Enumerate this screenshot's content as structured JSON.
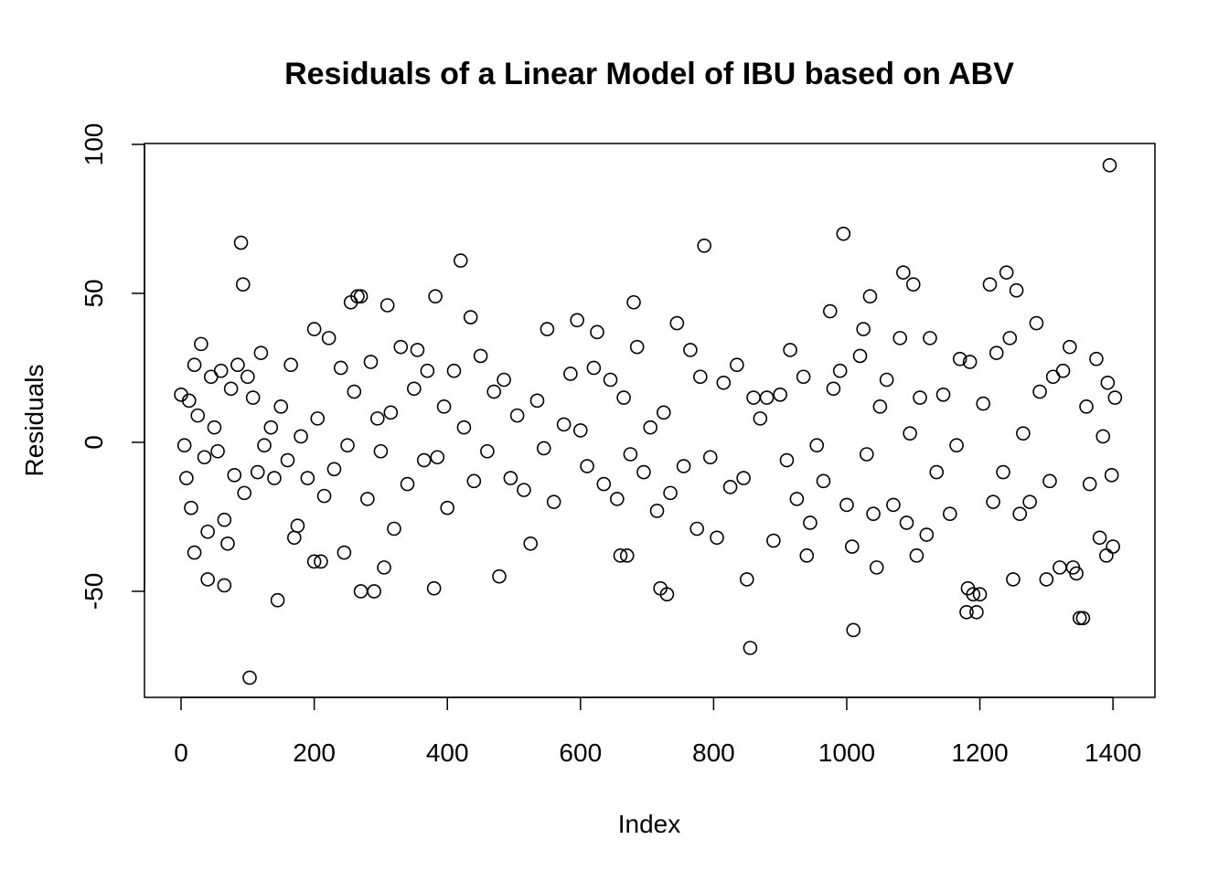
{
  "chart_data": {
    "type": "scatter",
    "title": "Residuals of a Linear Model of IBU based on ABV",
    "x_label": "Index",
    "y_label": "Residuals",
    "color": "#000000",
    "x": [
      0,
      5,
      8,
      12,
      15,
      20,
      20,
      25,
      30,
      35,
      40,
      40,
      45,
      50,
      55,
      60,
      65,
      65,
      70,
      75,
      80,
      85,
      90,
      93,
      95,
      100,
      103,
      108,
      115,
      120,
      125,
      135,
      140,
      145,
      150,
      160,
      165,
      170,
      175,
      180,
      190,
      200,
      200,
      205,
      210,
      215,
      222,
      230,
      240,
      245,
      250,
      255,
      260,
      265,
      270,
      270,
      280,
      285,
      290,
      295,
      300,
      305,
      310,
      315,
      320,
      330,
      340,
      350,
      355,
      365,
      370,
      380,
      382,
      385,
      395,
      400,
      410,
      420,
      425,
      435,
      440,
      450,
      460,
      470,
      478,
      485,
      495,
      505,
      515,
      525,
      535,
      545,
      550,
      560,
      575,
      585,
      595,
      600,
      610,
      620,
      625,
      635,
      645,
      655,
      660,
      665,
      670,
      675,
      680,
      685,
      695,
      705,
      715,
      720,
      725,
      730,
      735,
      745,
      755,
      765,
      775,
      780,
      786,
      795,
      805,
      815,
      825,
      835,
      845,
      850,
      855,
      860,
      870,
      880,
      890,
      900,
      910,
      915,
      925,
      935,
      940,
      945,
      955,
      965,
      975,
      980,
      990,
      995,
      1000,
      1008,
      1010,
      1020,
      1025,
      1030,
      1035,
      1040,
      1045,
      1050,
      1060,
      1070,
      1080,
      1085,
      1090,
      1095,
      1100,
      1105,
      1110,
      1120,
      1125,
      1135,
      1145,
      1155,
      1165,
      1170,
      1180,
      1182,
      1185,
      1190,
      1195,
      1200,
      1205,
      1215,
      1220,
      1225,
      1235,
      1240,
      1245,
      1250,
      1255,
      1260,
      1265,
      1275,
      1285,
      1290,
      1300,
      1305,
      1310,
      1320,
      1325,
      1335,
      1340,
      1345,
      1350,
      1355,
      1360,
      1365,
      1375,
      1380,
      1385,
      1390,
      1392,
      1395,
      1398,
      1400,
      1403
    ],
    "values": [
      16,
      -1,
      -12,
      14,
      -22,
      26,
      -37,
      9,
      33,
      -5,
      -30,
      -46,
      22,
      5,
      -3,
      24,
      -26,
      -48,
      -34,
      18,
      -11,
      26,
      67,
      53,
      -17,
      22,
      -79,
      15,
      -10,
      30,
      -1,
      5,
      -12,
      -53,
      12,
      -6,
      26,
      -32,
      -28,
      2,
      -12,
      38,
      -40,
      8,
      -40,
      -18,
      35,
      -9,
      25,
      -37,
      -1,
      47,
      17,
      49,
      49,
      -50,
      -19,
      27,
      -50,
      8,
      -3,
      -42,
      46,
      10,
      -29,
      32,
      -14,
      18,
      31,
      -6,
      24,
      -49,
      49,
      -5,
      12,
      -22,
      24,
      61,
      5,
      42,
      -13,
      29,
      -3,
      17,
      -45,
      21,
      -12,
      9,
      -16,
      -34,
      14,
      -2,
      38,
      -20,
      6,
      23,
      41,
      4,
      -8,
      25,
      37,
      -14,
      21,
      -19,
      -38,
      15,
      -38,
      -4,
      47,
      32,
      -10,
      5,
      -23,
      -49,
      10,
      -51,
      -17,
      40,
      -8,
      31,
      -29,
      22,
      66,
      -5,
      -32,
      20,
      -15,
      26,
      -12,
      -46,
      -69,
      15,
      8,
      15,
      -33,
      16,
      -6,
      31,
      -19,
      22,
      -38,
      -27,
      -1,
      -13,
      44,
      18,
      24,
      70,
      -21,
      -35,
      -63,
      29,
      38,
      -4,
      49,
      -24,
      -42,
      12,
      21,
      -21,
      35,
      57,
      -27,
      3,
      53,
      -38,
      15,
      -31,
      35,
      -10,
      16,
      -24,
      -1,
      28,
      -57,
      -49,
      27,
      -51,
      -57,
      -51,
      13,
      53,
      -20,
      30,
      -10,
      57,
      35,
      -46,
      51,
      -24,
      3,
      -20,
      40,
      17,
      -46,
      -13,
      22,
      -42,
      24,
      32,
      -42,
      -44,
      -59,
      -59,
      12,
      -14,
      28,
      -32,
      2,
      -38,
      20,
      93,
      -11,
      -35,
      15
    ],
    "xlim": [
      -55,
      1463
    ],
    "ylim": [
      -85.6,
      100.3
    ],
    "xticks": [
      0,
      200,
      400,
      600,
      800,
      1000,
      1200,
      1400
    ],
    "yticks": [
      -50,
      0,
      50,
      100
    ]
  }
}
